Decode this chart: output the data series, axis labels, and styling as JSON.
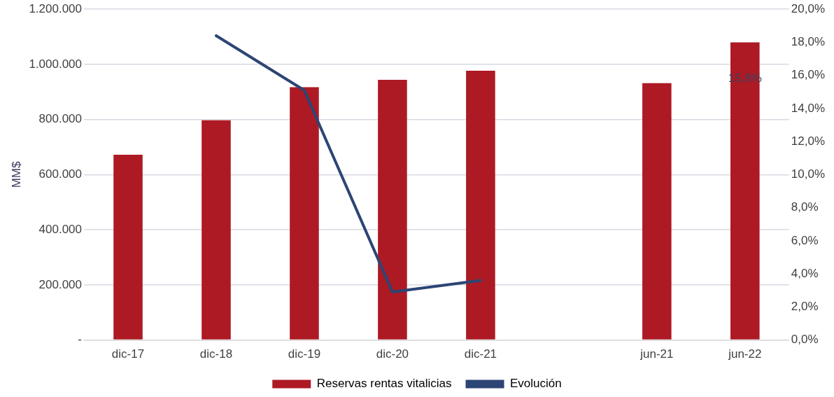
{
  "chart_data": {
    "type": "bar",
    "ylabel": "MM$",
    "categories": [
      "dic-17",
      "dic-18",
      "dic-19",
      "dic-20",
      "dic-21",
      null,
      "jun-21",
      "jun-22"
    ],
    "series": [
      {
        "name": "Reservas rentas vitalicias",
        "color": "#ad1a24",
        "values": [
          672000,
          797000,
          917000,
          944000,
          977000,
          null,
          932000,
          1080000
        ]
      },
      {
        "name": "Evolución",
        "type": "line",
        "axis": "y2",
        "color": "#2d4574",
        "values": [
          null,
          18.4,
          15.1,
          2.9,
          3.6,
          null,
          null,
          null
        ]
      }
    ],
    "ylim": [
      0,
      1200000
    ],
    "yticks": [
      {
        "value": 0,
        "label": "-"
      },
      {
        "value": 200000,
        "label": "200.000"
      },
      {
        "value": 400000,
        "label": "400.000"
      },
      {
        "value": 600000,
        "label": "600.000"
      },
      {
        "value": 800000,
        "label": "800.000"
      },
      {
        "value": 1000000,
        "label": "1.000.000"
      },
      {
        "value": 1200000,
        "label": "1.200.000"
      }
    ],
    "y2lim": [
      0,
      20
    ],
    "y2ticks": [
      {
        "value": 0,
        "label": "0,0%"
      },
      {
        "value": 2,
        "label": "2,0%"
      },
      {
        "value": 4,
        "label": "4,0%"
      },
      {
        "value": 6,
        "label": "6,0%"
      },
      {
        "value": 8,
        "label": "8,0%"
      },
      {
        "value": 10,
        "label": "10,0%"
      },
      {
        "value": 12,
        "label": "12,0%"
      },
      {
        "value": 14,
        "label": "14,0%"
      },
      {
        "value": 16,
        "label": "16,0%"
      },
      {
        "value": 18,
        "label": "18,0%"
      },
      {
        "value": 20,
        "label": "20,0%"
      }
    ],
    "annotations": [
      "15,8%"
    ],
    "grid": "y",
    "legend": "bottom",
    "marker": "none",
    "line_style": "solid"
  }
}
